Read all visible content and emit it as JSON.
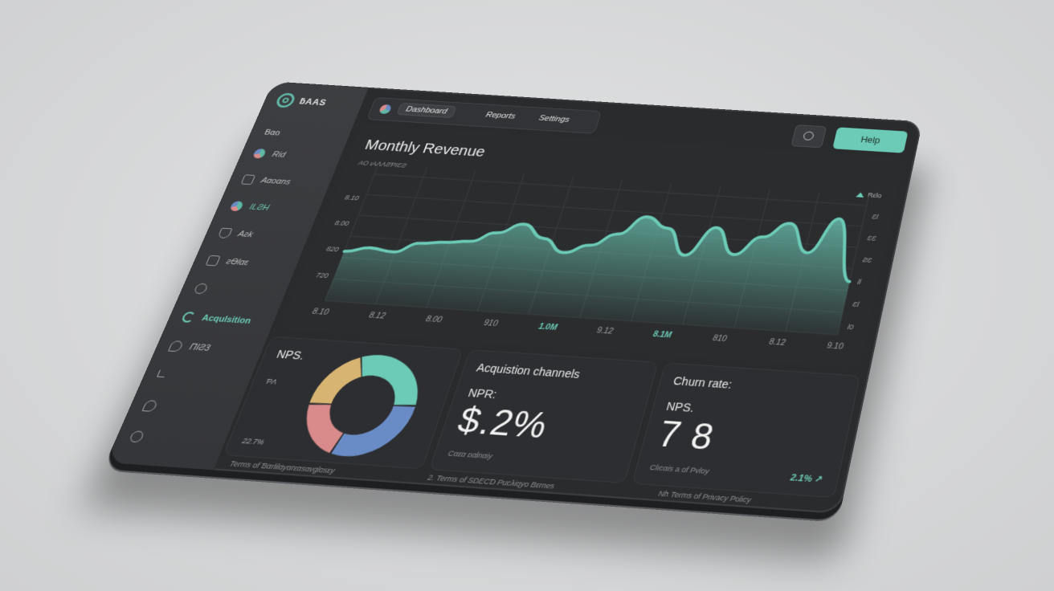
{
  "app": {
    "brand": "ƃAAS"
  },
  "sidebar": {
    "section": "Bαo",
    "items": [
      {
        "label": "Rid",
        "icon": "pie-icon"
      },
      {
        "label": "Aαoαns",
        "icon": "folder-icon"
      },
      {
        "label": "ILƧH",
        "icon": "chart-icon"
      },
      {
        "label": "Aƨk",
        "icon": "shield-icon"
      },
      {
        "label": "ƨƟlαε",
        "icon": "calendar-icon"
      },
      {
        "label": "",
        "icon": "link-icon"
      },
      {
        "label": "Acqulsition",
        "icon": "acquisition-icon",
        "active": true
      },
      {
        "label": "ΠIƧ3",
        "icon": "chat-icon"
      },
      {
        "label": "",
        "icon": "chevron-icon"
      },
      {
        "label": "",
        "icon": "bubble-icon"
      },
      {
        "label": "",
        "icon": "power-icon"
      }
    ]
  },
  "topbar": {
    "tabs": [
      {
        "label": "Dashboard",
        "active": true
      },
      {
        "label": "Reports"
      },
      {
        "label": "Settings"
      }
    ],
    "help_label": "Help"
  },
  "chart_panel": {
    "title": "Monthly Revenue",
    "subtitle": "AO ιAΛΛƧƤΙƐƧ",
    "legend": "Rεlo"
  },
  "chart_data": {
    "type": "area",
    "title": "Monthly Revenue",
    "y_tick_labels": [
      "720",
      "820",
      "8.00",
      "8.10"
    ],
    "y_right_tick_labels": [
      "Ɛl",
      "ƐƐ",
      "ƧƐ",
      "ƖƖ",
      "ƐƖ",
      "Ɩ0"
    ],
    "x_tick_labels": [
      "8.10",
      "8.12",
      "8.00",
      "910",
      "1.0M",
      "9.12",
      "8.1M",
      "810",
      "8.12",
      "9.10"
    ],
    "series": [
      {
        "values": [
          0.38,
          0.42,
          0.4,
          0.48,
          0.5,
          0.52,
          0.6,
          0.68,
          0.58,
          0.48,
          0.55,
          0.65,
          0.8,
          0.72,
          0.52,
          0.75,
          0.55,
          0.7,
          0.82,
          0.6,
          0.88,
          0.4
        ]
      }
    ],
    "highlight_ticks": [
      "1.0M",
      "8.1M"
    ],
    "grid": true,
    "color": "#6ccbb7"
  },
  "cards": {
    "nps": {
      "title": "NPS.",
      "pct_left": "ƤΛ",
      "pct_bottom": "22.7%",
      "donut": [
        {
          "value": 30,
          "color": "#6ccbb7"
        },
        {
          "value": 30,
          "color": "#6a8cc6"
        },
        {
          "value": 20,
          "color": "#d98a8a"
        },
        {
          "value": 20,
          "color": "#d8b472"
        }
      ]
    },
    "acquisition": {
      "title": "Acquistion channels",
      "label": "NPR:",
      "value": "$.2%",
      "note": "Cαεα ɒαlnαiy"
    },
    "churn": {
      "title": "Churn rate:",
      "label": "NPS.",
      "value": "7 8",
      "note": "Clıcαis a of Pvloy",
      "delta": "2.1% ↗"
    }
  },
  "footer": {
    "links": [
      "Terms of Ɓαrlilαyαrεαsαvɡlosεy",
      "2. Terms of SDECƊ Pucλiqyo Bεrnes",
      "Nh Terms of Privacy Policy"
    ]
  }
}
